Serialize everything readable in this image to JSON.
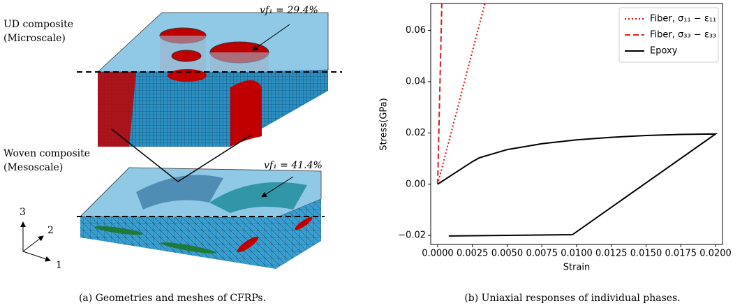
{
  "figure_a": {
    "ud_title": "UD composite",
    "ud_scale": "(Microscale)",
    "woven_title": "Woven composite",
    "woven_scale": "(Mesoscale)",
    "ud_vf": "vf₁ = 29.4%",
    "woven_vf": "vf₁ = 41.4%",
    "axis_1": "1",
    "axis_2": "2",
    "axis_3": "3",
    "caption": "(a) Geometries and meshes of CFRPs."
  },
  "chart_data": {
    "type": "line",
    "xlabel": "Strain",
    "ylabel": "Stress(GPa)",
    "caption": "(b) Uniaxial responses of individual phases.",
    "xlim": [
      -0.0005,
      0.0205
    ],
    "ylim": [
      -0.0235,
      0.0705
    ],
    "xticks": [
      {
        "value": 0,
        "label": "0.0000"
      },
      {
        "value": 0.0025,
        "label": "0.0025"
      },
      {
        "value": 0.005,
        "label": "0.0050"
      },
      {
        "value": 0.0075,
        "label": "0.0075"
      },
      {
        "value": 0.01,
        "label": "0.0100"
      },
      {
        "value": 0.0125,
        "label": "0.0125"
      },
      {
        "value": 0.015,
        "label": "0.0150"
      },
      {
        "value": 0.0175,
        "label": "0.0175"
      },
      {
        "value": 0.02,
        "label": "0.0200"
      }
    ],
    "yticks": [
      {
        "value": -0.02,
        "label": "−0.02"
      },
      {
        "value": 0,
        "label": "0.00"
      },
      {
        "value": 0.02,
        "label": "0.02"
      },
      {
        "value": 0.04,
        "label": "0.04"
      },
      {
        "value": 0.06,
        "label": "0.06"
      }
    ],
    "legend": "upper right",
    "series": [
      {
        "name": "Fiber, σ₁₁ − ε₁₁",
        "color": "#ff0000",
        "style": "dotted",
        "x": [
          0,
          0.0034
        ],
        "values": [
          0,
          0.0705
        ]
      },
      {
        "name": "Fiber, σ₃₃ − ε₃₃",
        "color": "#e31a1c",
        "style": "dashed",
        "x": [
          0,
          0.0003
        ],
        "values": [
          0,
          0.0705
        ]
      },
      {
        "name": "Epoxy",
        "color": "#000000",
        "style": "solid",
        "x": [
          0,
          0.0025,
          0.003,
          0.005,
          0.0075,
          0.01,
          0.0125,
          0.015,
          0.0175,
          0.02,
          0.0097,
          0.0008
        ],
        "values": [
          0,
          0.0088,
          0.0103,
          0.0135,
          0.0158,
          0.0173,
          0.0183,
          0.019,
          0.0194,
          0.0196,
          -0.0197,
          -0.0202
        ]
      }
    ]
  }
}
